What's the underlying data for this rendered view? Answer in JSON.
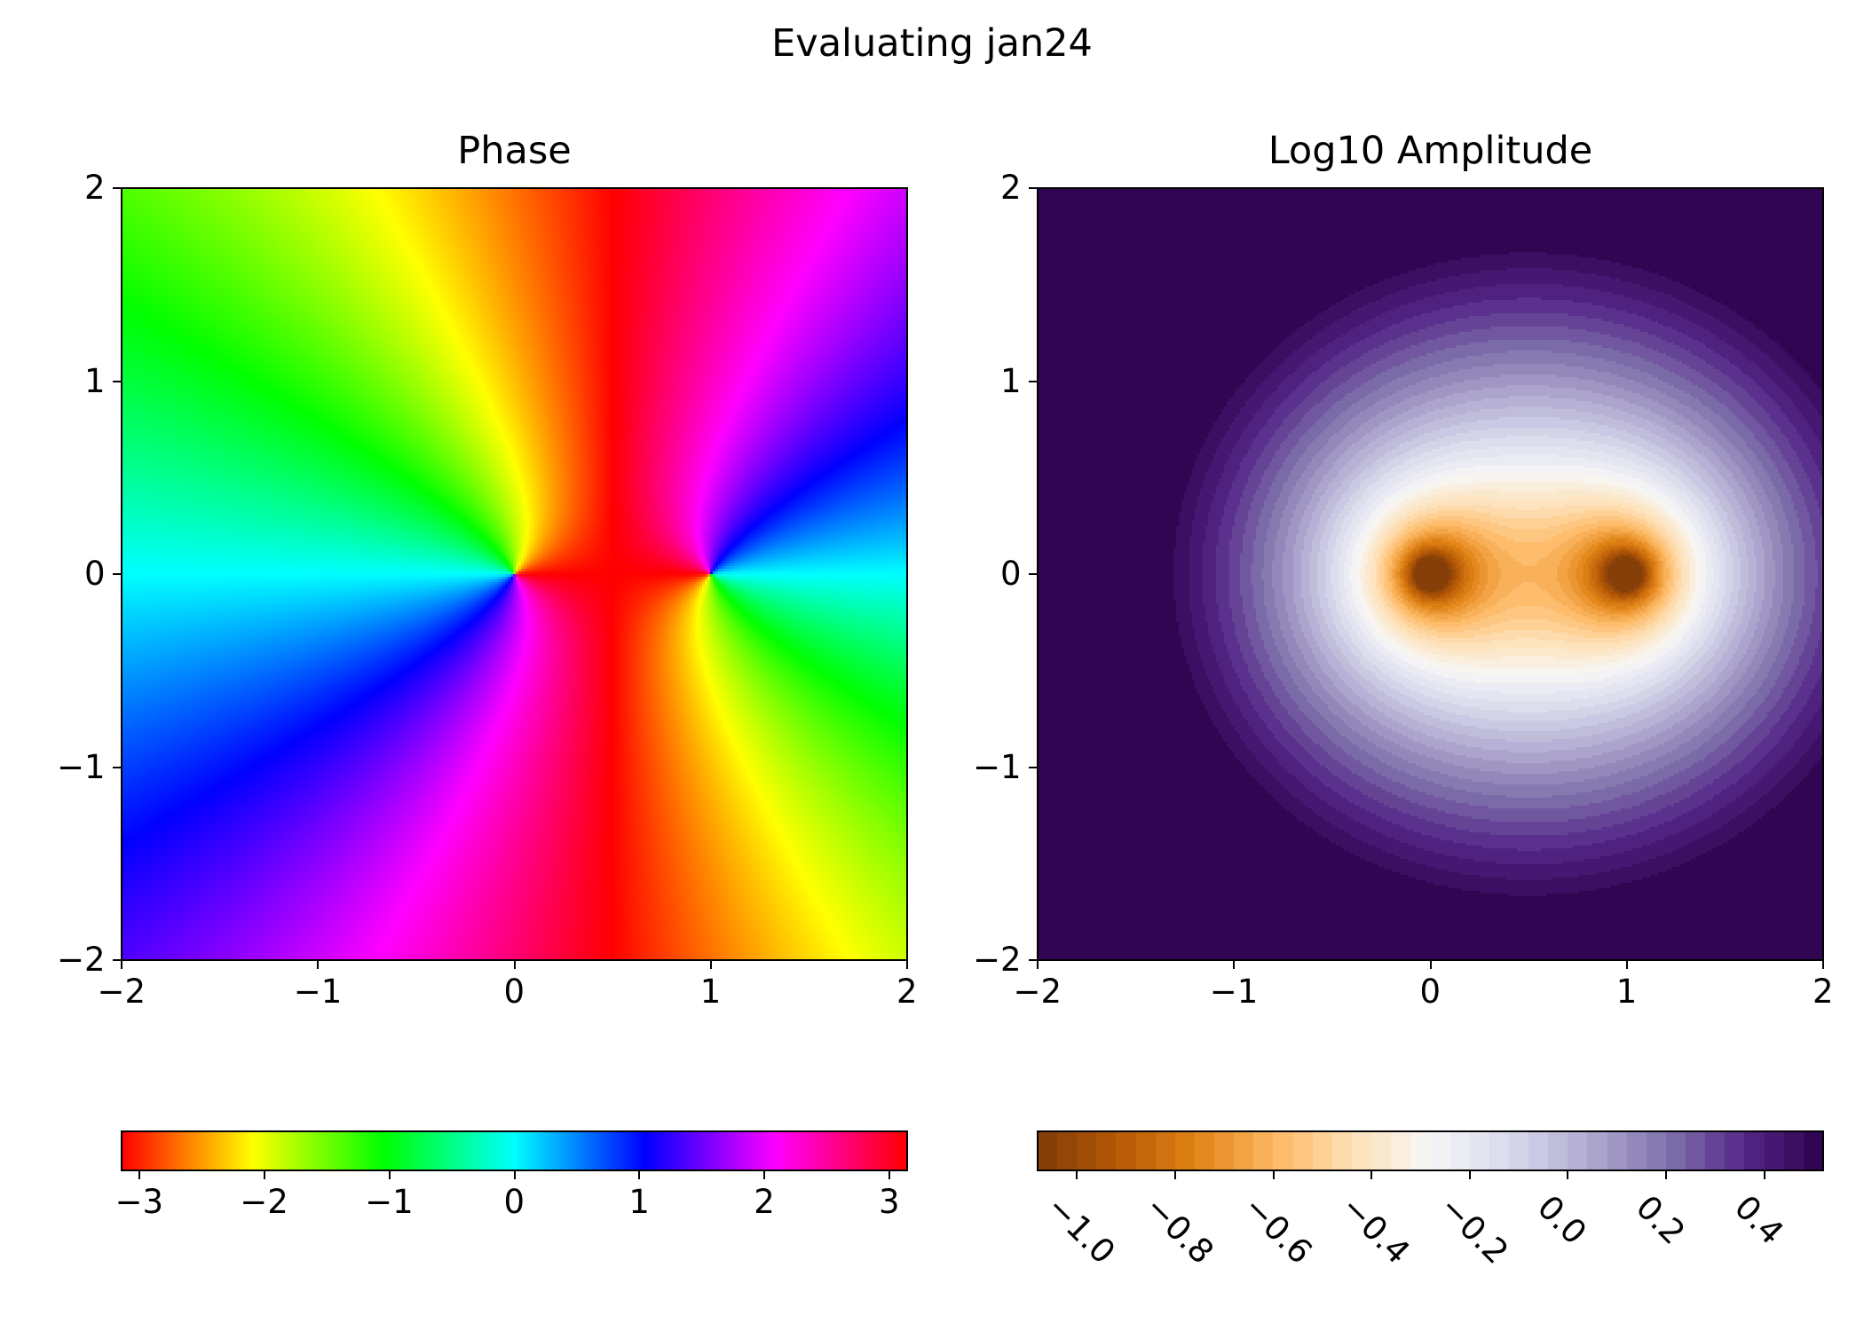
{
  "figure": {
    "suptitle": "Evaluating jan24"
  },
  "chart_data": [
    {
      "type": "heatmap",
      "title": "Phase",
      "quantity": "arg f(z)",
      "function_zeros": [
        [
          0,
          0
        ],
        [
          1,
          0
        ]
      ],
      "colormap": "hsv",
      "xlim": [
        -2,
        2
      ],
      "ylim": [
        -2,
        2
      ],
      "xticks": [
        -2,
        -1,
        0,
        1,
        2
      ],
      "yticks": [
        -2,
        -1,
        0,
        1,
        2
      ],
      "xtick_labels": [
        "−2",
        "−1",
        "0",
        "1",
        "2"
      ],
      "ytick_labels": [
        "−2",
        "−1",
        "0",
        "1",
        "2"
      ],
      "colorbar": {
        "orientation": "horizontal",
        "range": [
          -3.14159,
          3.14159
        ],
        "ticks": [
          -3,
          -2,
          -1,
          0,
          1,
          2,
          3
        ],
        "tick_labels": [
          "−3",
          "−2",
          "−1",
          "0",
          "1",
          "2",
          "3"
        ]
      }
    },
    {
      "type": "heatmap",
      "title": "Log10 Amplitude",
      "quantity": "log10 |f(z)|",
      "function_zeros": [
        [
          0,
          0
        ],
        [
          1,
          0
        ]
      ],
      "colormap": "PuOr",
      "levels": 40,
      "xlim": [
        -2,
        2
      ],
      "ylim": [
        -2,
        2
      ],
      "xticks": [
        -2,
        -1,
        0,
        1,
        2
      ],
      "yticks": [
        -2,
        -1,
        0,
        1,
        2
      ],
      "xtick_labels": [
        "−2",
        "−1",
        "0",
        "1",
        "2"
      ],
      "ytick_labels": [
        "−2",
        "−1",
        "0",
        "1",
        "2"
      ],
      "colorbar": {
        "orientation": "horizontal",
        "range": [
          -1.08,
          0.52
        ],
        "ticks": [
          -1.0,
          -0.8,
          -0.6,
          -0.4,
          -0.2,
          0.0,
          0.2,
          0.4
        ],
        "tick_labels": [
          "−1.0",
          "−0.8",
          "−0.6",
          "−0.4",
          "−0.2",
          "0.0",
          "0.2",
          "0.4"
        ],
        "tick_label_rotation_deg": 45
      }
    }
  ]
}
